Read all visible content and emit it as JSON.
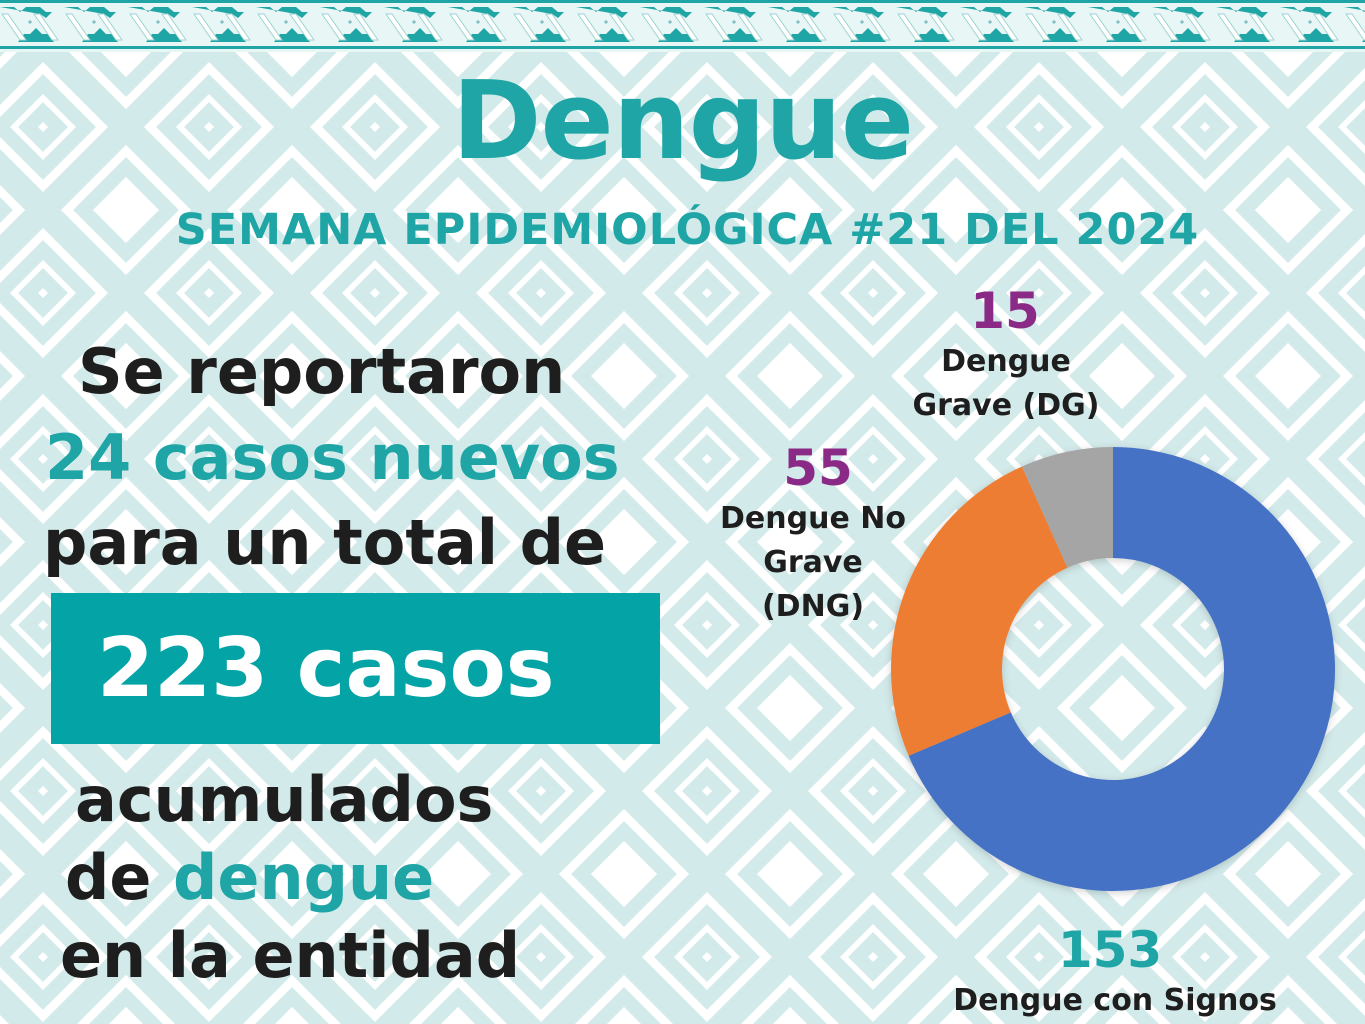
{
  "header": {
    "title": "Dengue",
    "subtitle": "SEMANA EPIDEMIOLÓGICA #21 DEL 2024"
  },
  "summary": {
    "line1": "Se reportaron",
    "line2": "24 casos nuevos",
    "line3": "para un total de",
    "total_label": "223 casos",
    "line4": "acumulados",
    "line5_prefix": "de",
    "line5_highlight": "dengue",
    "line6": "en la entidad"
  },
  "chart_labels": {
    "dg": {
      "value": "15",
      "line1": "Dengue",
      "line2": "Grave (DG)"
    },
    "dng": {
      "value": "55",
      "line1": "Dengue No",
      "line2": "Grave",
      "line3": "(DNG)"
    },
    "dcs": {
      "value": "153",
      "line1": "Dengue con Signos"
    }
  },
  "colors": {
    "brand_teal": "#1fa5a5",
    "box_teal": "#04a4a6",
    "label_purple": "#8b2a86",
    "text_dark": "#1e1e1e",
    "pattern": "#d3eaea",
    "seg_blue": "#4472c4",
    "seg_orange": "#ed7d31",
    "seg_gray": "#a5a5a5"
  },
  "chart_data": {
    "type": "pie",
    "variant": "donut",
    "title": "Dengue — Semana Epidemiológica #21 del 2024",
    "categories": [
      "Dengue con Signos",
      "Dengue No Grave (DNG)",
      "Dengue Grave (DG)"
    ],
    "values": [
      153,
      55,
      15
    ],
    "total": 223,
    "colors": [
      "#4472c4",
      "#ed7d31",
      "#a5a5a5"
    ],
    "start_angle": "12 o'clock, clockwise",
    "legend": "none (direct labels)"
  }
}
